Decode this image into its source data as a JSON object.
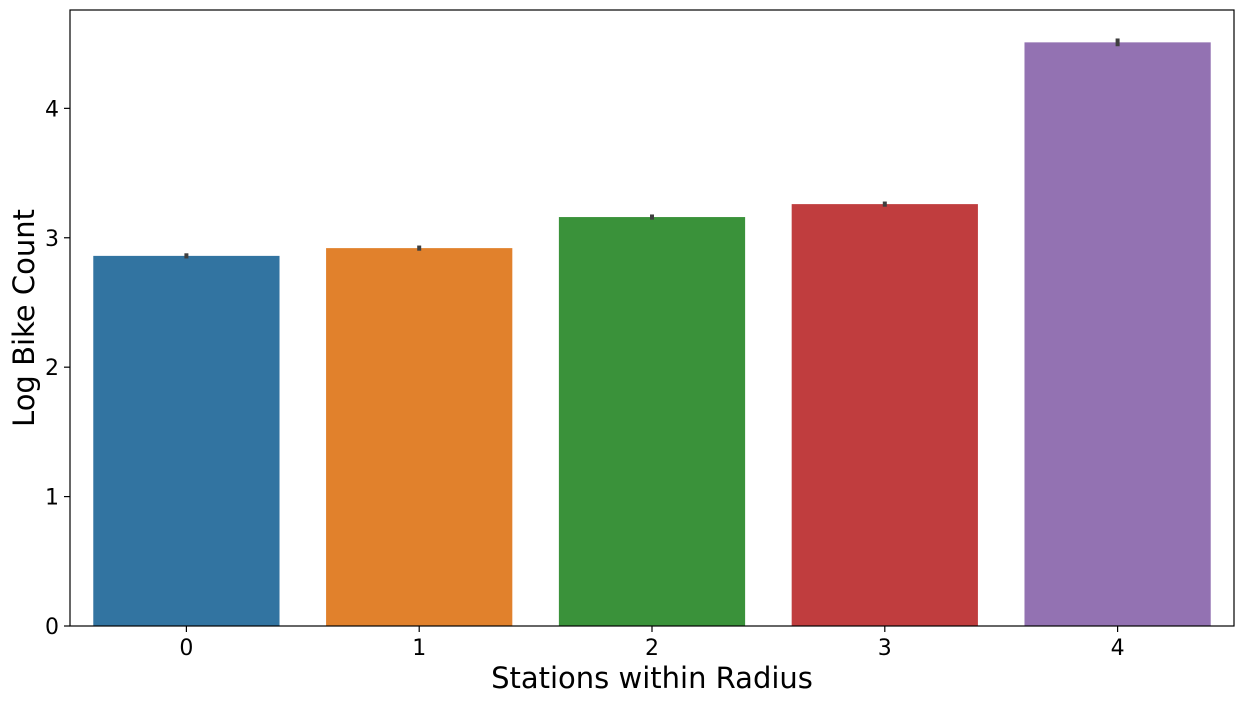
{
  "chart_data": {
    "type": "bar",
    "title": "",
    "xlabel": "Stations within Radius",
    "ylabel": "Log Bike Count",
    "categories": [
      "0",
      "1",
      "2",
      "3",
      "4"
    ],
    "values": [
      2.86,
      2.92,
      3.16,
      3.26,
      4.51
    ],
    "error_low": [
      2.84,
      2.9,
      3.14,
      3.24,
      4.48
    ],
    "error_high": [
      2.88,
      2.94,
      3.18,
      3.28,
      4.54
    ],
    "colors": [
      "#3274a1",
      "#e1812c",
      "#3a923a",
      "#c03d3e",
      "#9372b2"
    ],
    "error_color": "#3f3f3f",
    "ylim": [
      0,
      4.76
    ],
    "yticks": [
      "0",
      "1",
      "2",
      "3",
      "4"
    ],
    "grid": false,
    "legend": "none"
  }
}
